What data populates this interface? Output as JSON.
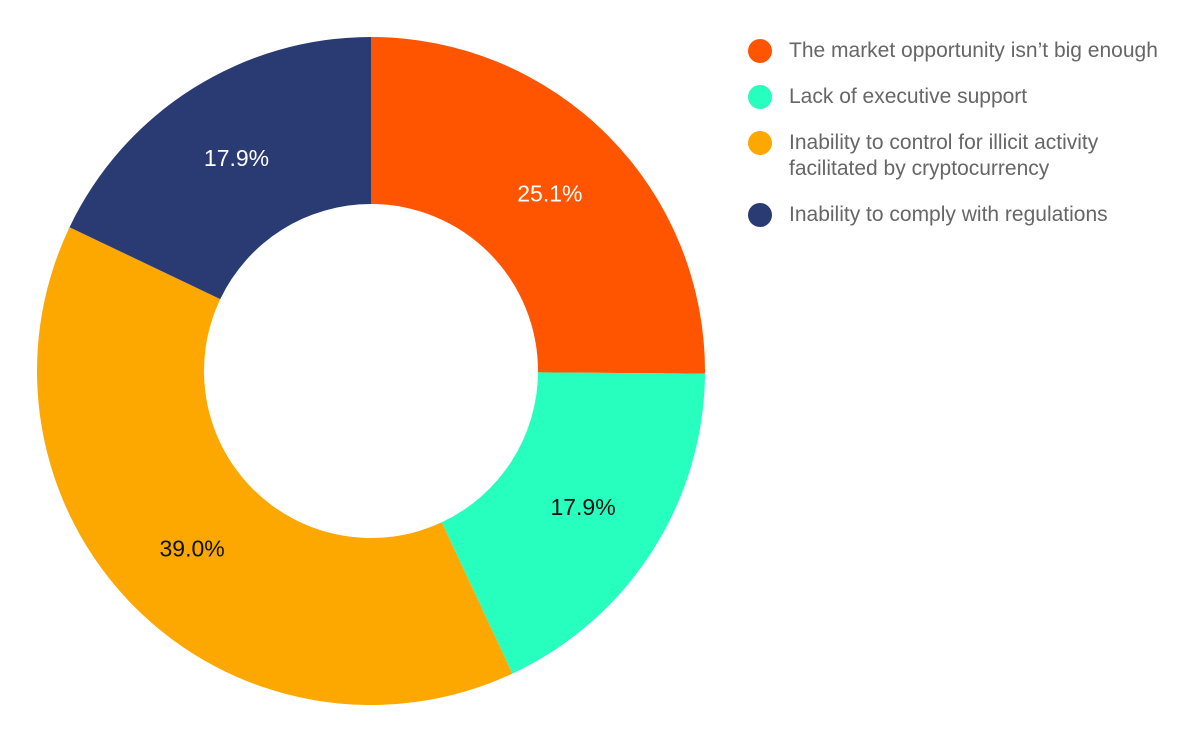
{
  "chart_data": {
    "type": "pie",
    "donut": true,
    "title": "",
    "slices": [
      {
        "label": "The market opportunity isn’t big enough",
        "value": 25.1,
        "display": "25.1%",
        "color": "#FF5500",
        "text_color": "#FFFFFF"
      },
      {
        "label": "Lack of executive support",
        "value": 17.9,
        "display": "17.9%",
        "color": "#26FFBE",
        "text_color": "#111111"
      },
      {
        "label": "Inability to control for illicit activity facilitated by cryptocurrency",
        "value": 39.0,
        "display": "39.0%",
        "color": "#FCA800",
        "text_color": "#111111"
      },
      {
        "label": "Inability to comply with regulations",
        "value": 17.9,
        "display": "17.9%",
        "color": "#2A3A72",
        "text_color": "#FFFFFF"
      }
    ],
    "legend_position": "right"
  }
}
